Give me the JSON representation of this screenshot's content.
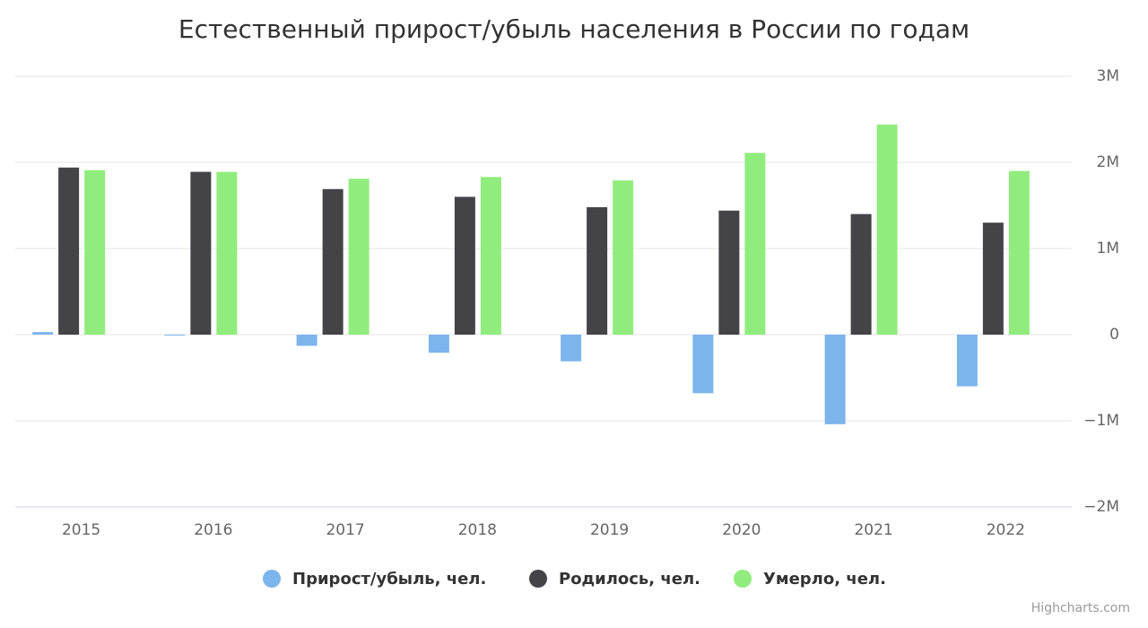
{
  "chart_data": {
    "type": "bar",
    "title": "Естественный прирост/убыль населения в России по годам",
    "categories": [
      "2015",
      "2016",
      "2017",
      "2018",
      "2019",
      "2020",
      "2021",
      "2022"
    ],
    "series": [
      {
        "name": "Прирост/убыль, чел.",
        "color": "#7cb5ec",
        "values": [
          30000,
          -10000,
          -130000,
          -210000,
          -310000,
          -680000,
          -1040000,
          -600000
        ]
      },
      {
        "name": "Родилось, чел.",
        "color": "#434348",
        "values": [
          1940000,
          1890000,
          1690000,
          1600000,
          1480000,
          1440000,
          1400000,
          1300000
        ]
      },
      {
        "name": "Умерло, чел.",
        "color": "#90ed7d",
        "values": [
          1910000,
          1890000,
          1810000,
          1830000,
          1790000,
          2110000,
          2440000,
          1900000
        ]
      }
    ],
    "ylim": [
      -2000000,
      3000000
    ],
    "yticks": [
      {
        "value": -2000000,
        "label": "−2M"
      },
      {
        "value": -1000000,
        "label": "−1M"
      },
      0,
      {
        "value": 1000000,
        "label": "1M"
      },
      {
        "value": 2000000,
        "label": "2M"
      },
      {
        "value": 3000000,
        "label": "3M"
      }
    ],
    "grid": true,
    "credits": "Highcharts.com"
  }
}
